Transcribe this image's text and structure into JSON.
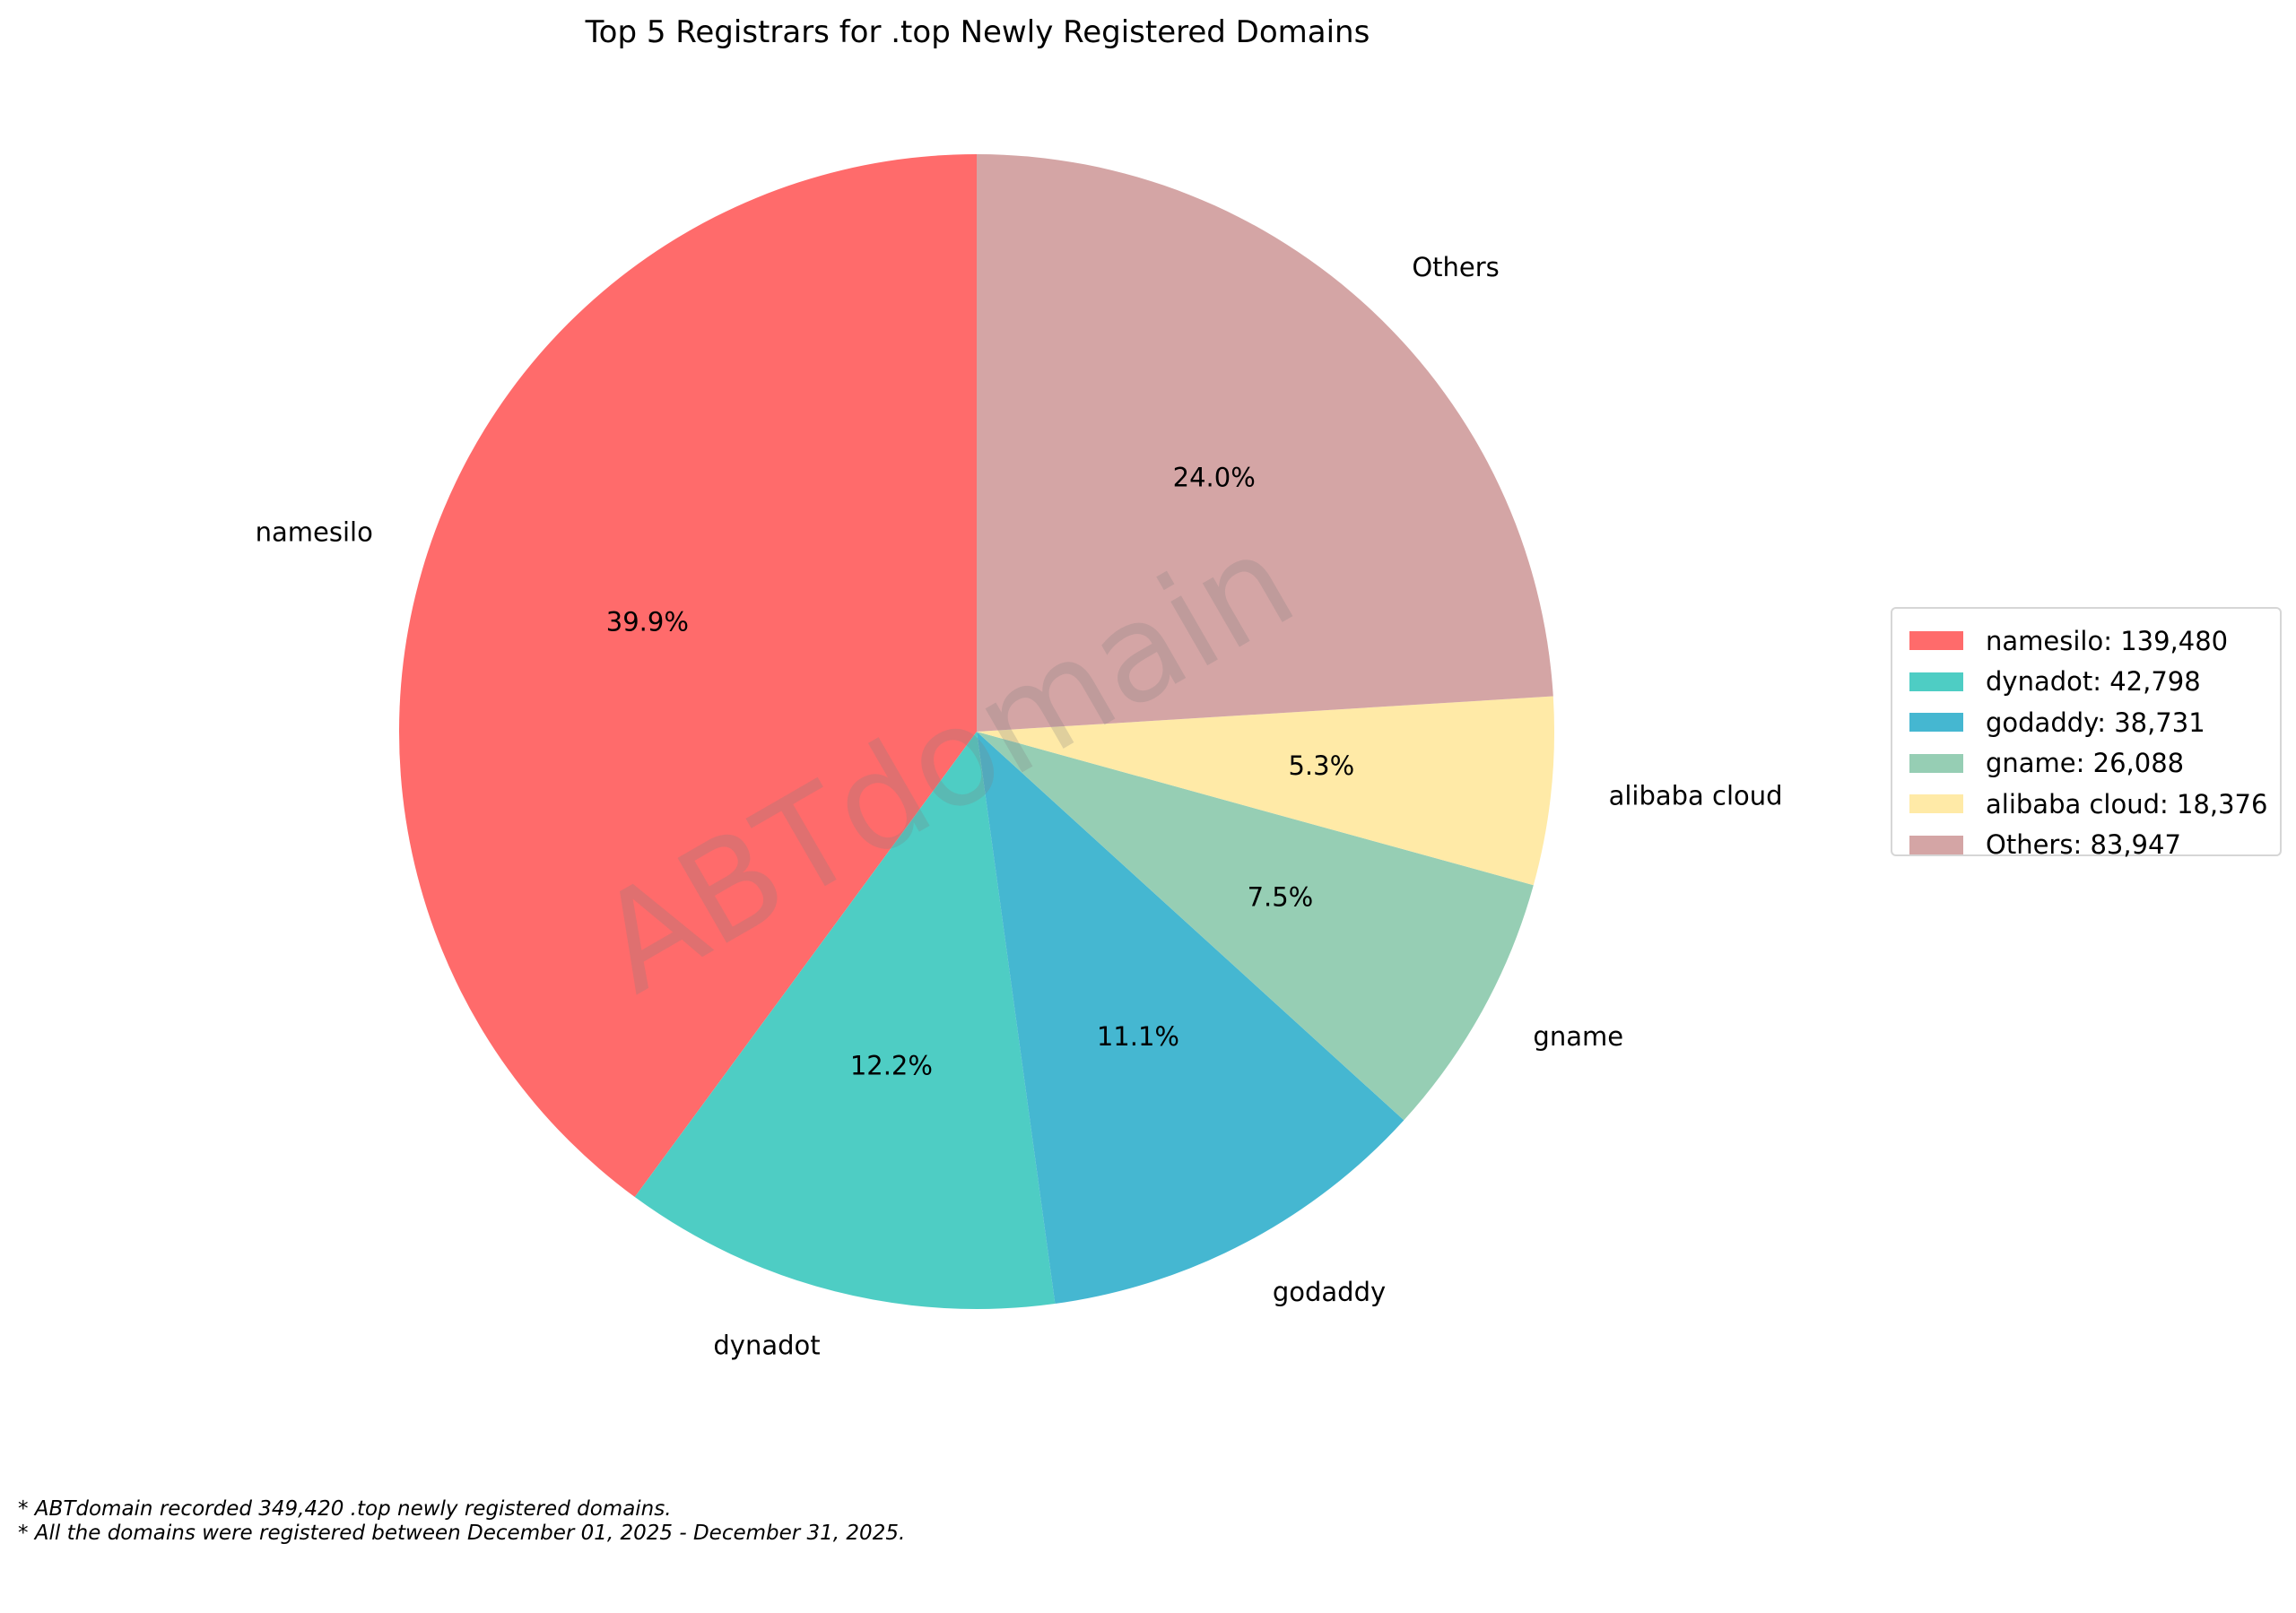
{
  "title": "Top 5 Registrars for .top Newly Registered Domains",
  "watermark": "ABTdomain",
  "legend": {
    "items": [
      {
        "label": "namesilo: 139,480",
        "color": "#FF6B6B"
      },
      {
        "label": "dynadot: 42,798",
        "color": "#4ECDC4"
      },
      {
        "label": "godaddy: 38,731",
        "color": "#45B7D1"
      },
      {
        "label": "gname: 26,088",
        "color": "#96CEB4"
      },
      {
        "label": "alibaba cloud: 18,376",
        "color": "#FFEAA7"
      },
      {
        "label": "Others: 83,947",
        "color": "#D4A5A5"
      }
    ]
  },
  "footnotes": [
    "* ABTdomain recorded 349,420 .top newly registered domains.",
    "* All the domains were registered between December 01, 2025 - December 31, 2025."
  ],
  "chart_data": {
    "type": "pie",
    "title": "Top 5 Registrars for .top Newly Registered Domains",
    "categories": [
      "namesilo",
      "dynadot",
      "godaddy",
      "gname",
      "alibaba cloud",
      "Others"
    ],
    "values": [
      139480,
      42798,
      38731,
      26088,
      18376,
      83947
    ],
    "percent_labels": [
      "39.9%",
      "12.2%",
      "11.1%",
      "7.5%",
      "5.3%",
      "24.0%"
    ],
    "colors": [
      "#FF6B6B",
      "#4ECDC4",
      "#45B7D1",
      "#96CEB4",
      "#FFEAA7",
      "#D4A5A5"
    ],
    "start_angle": 90,
    "direction": "counterclockwise",
    "total": 349420,
    "legend_position": "right",
    "grid": false,
    "annotations": [
      "* ABTdomain recorded 349,420 .top newly registered domains.",
      "* All the domains were registered between December 01, 2025 - December 31, 2025."
    ]
  }
}
